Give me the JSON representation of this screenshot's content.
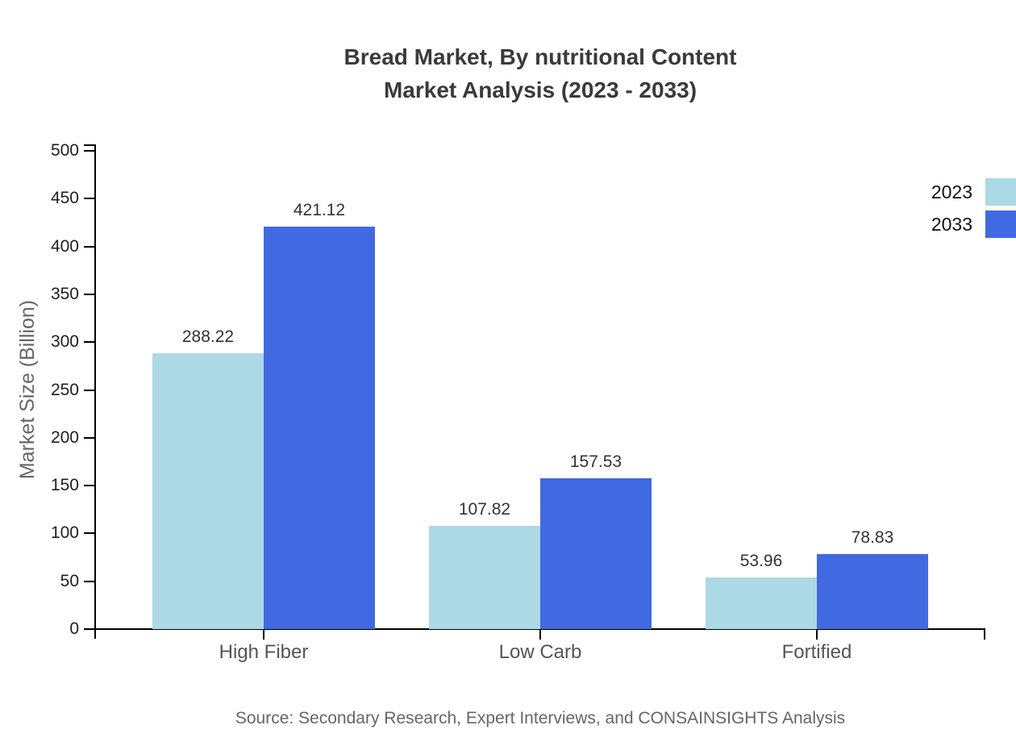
{
  "chart_data": {
    "type": "bar",
    "title": "Bread Market, By nutritional Content",
    "subtitle": "Market Analysis (2023 - 2033)",
    "categories": [
      "High Fiber",
      "Low Carb",
      "Fortified"
    ],
    "series": [
      {
        "name": "2023",
        "color": "#ADD8E6",
        "values": [
          288.22,
          107.82,
          53.96
        ]
      },
      {
        "name": "2033",
        "color": "#4169E1",
        "values": [
          421.12,
          157.53,
          78.83
        ]
      }
    ],
    "xlabel": "",
    "ylabel": "Market Size (Billion)",
    "ylim": [
      0,
      500
    ],
    "yticks": [
      0,
      50,
      100,
      150,
      200,
      250,
      300,
      350,
      400,
      450,
      500
    ],
    "grid": false,
    "legend_position": "top-right",
    "value_labels": true,
    "value_label_format": "2-decimals",
    "source": "Source: Secondary Research, Expert Interviews, and CONSAINSIGHTS Analysis"
  },
  "colors": {
    "background": "#ffffff",
    "title_text": "#3a3a3a",
    "axis_line": "#000000",
    "tick_label": "#1f1f1f",
    "category_label": "#555555",
    "value_label": "#333333",
    "muted_text": "#666666",
    "series_2023": "#ADD8E6",
    "series_2033": "#4169E1"
  }
}
